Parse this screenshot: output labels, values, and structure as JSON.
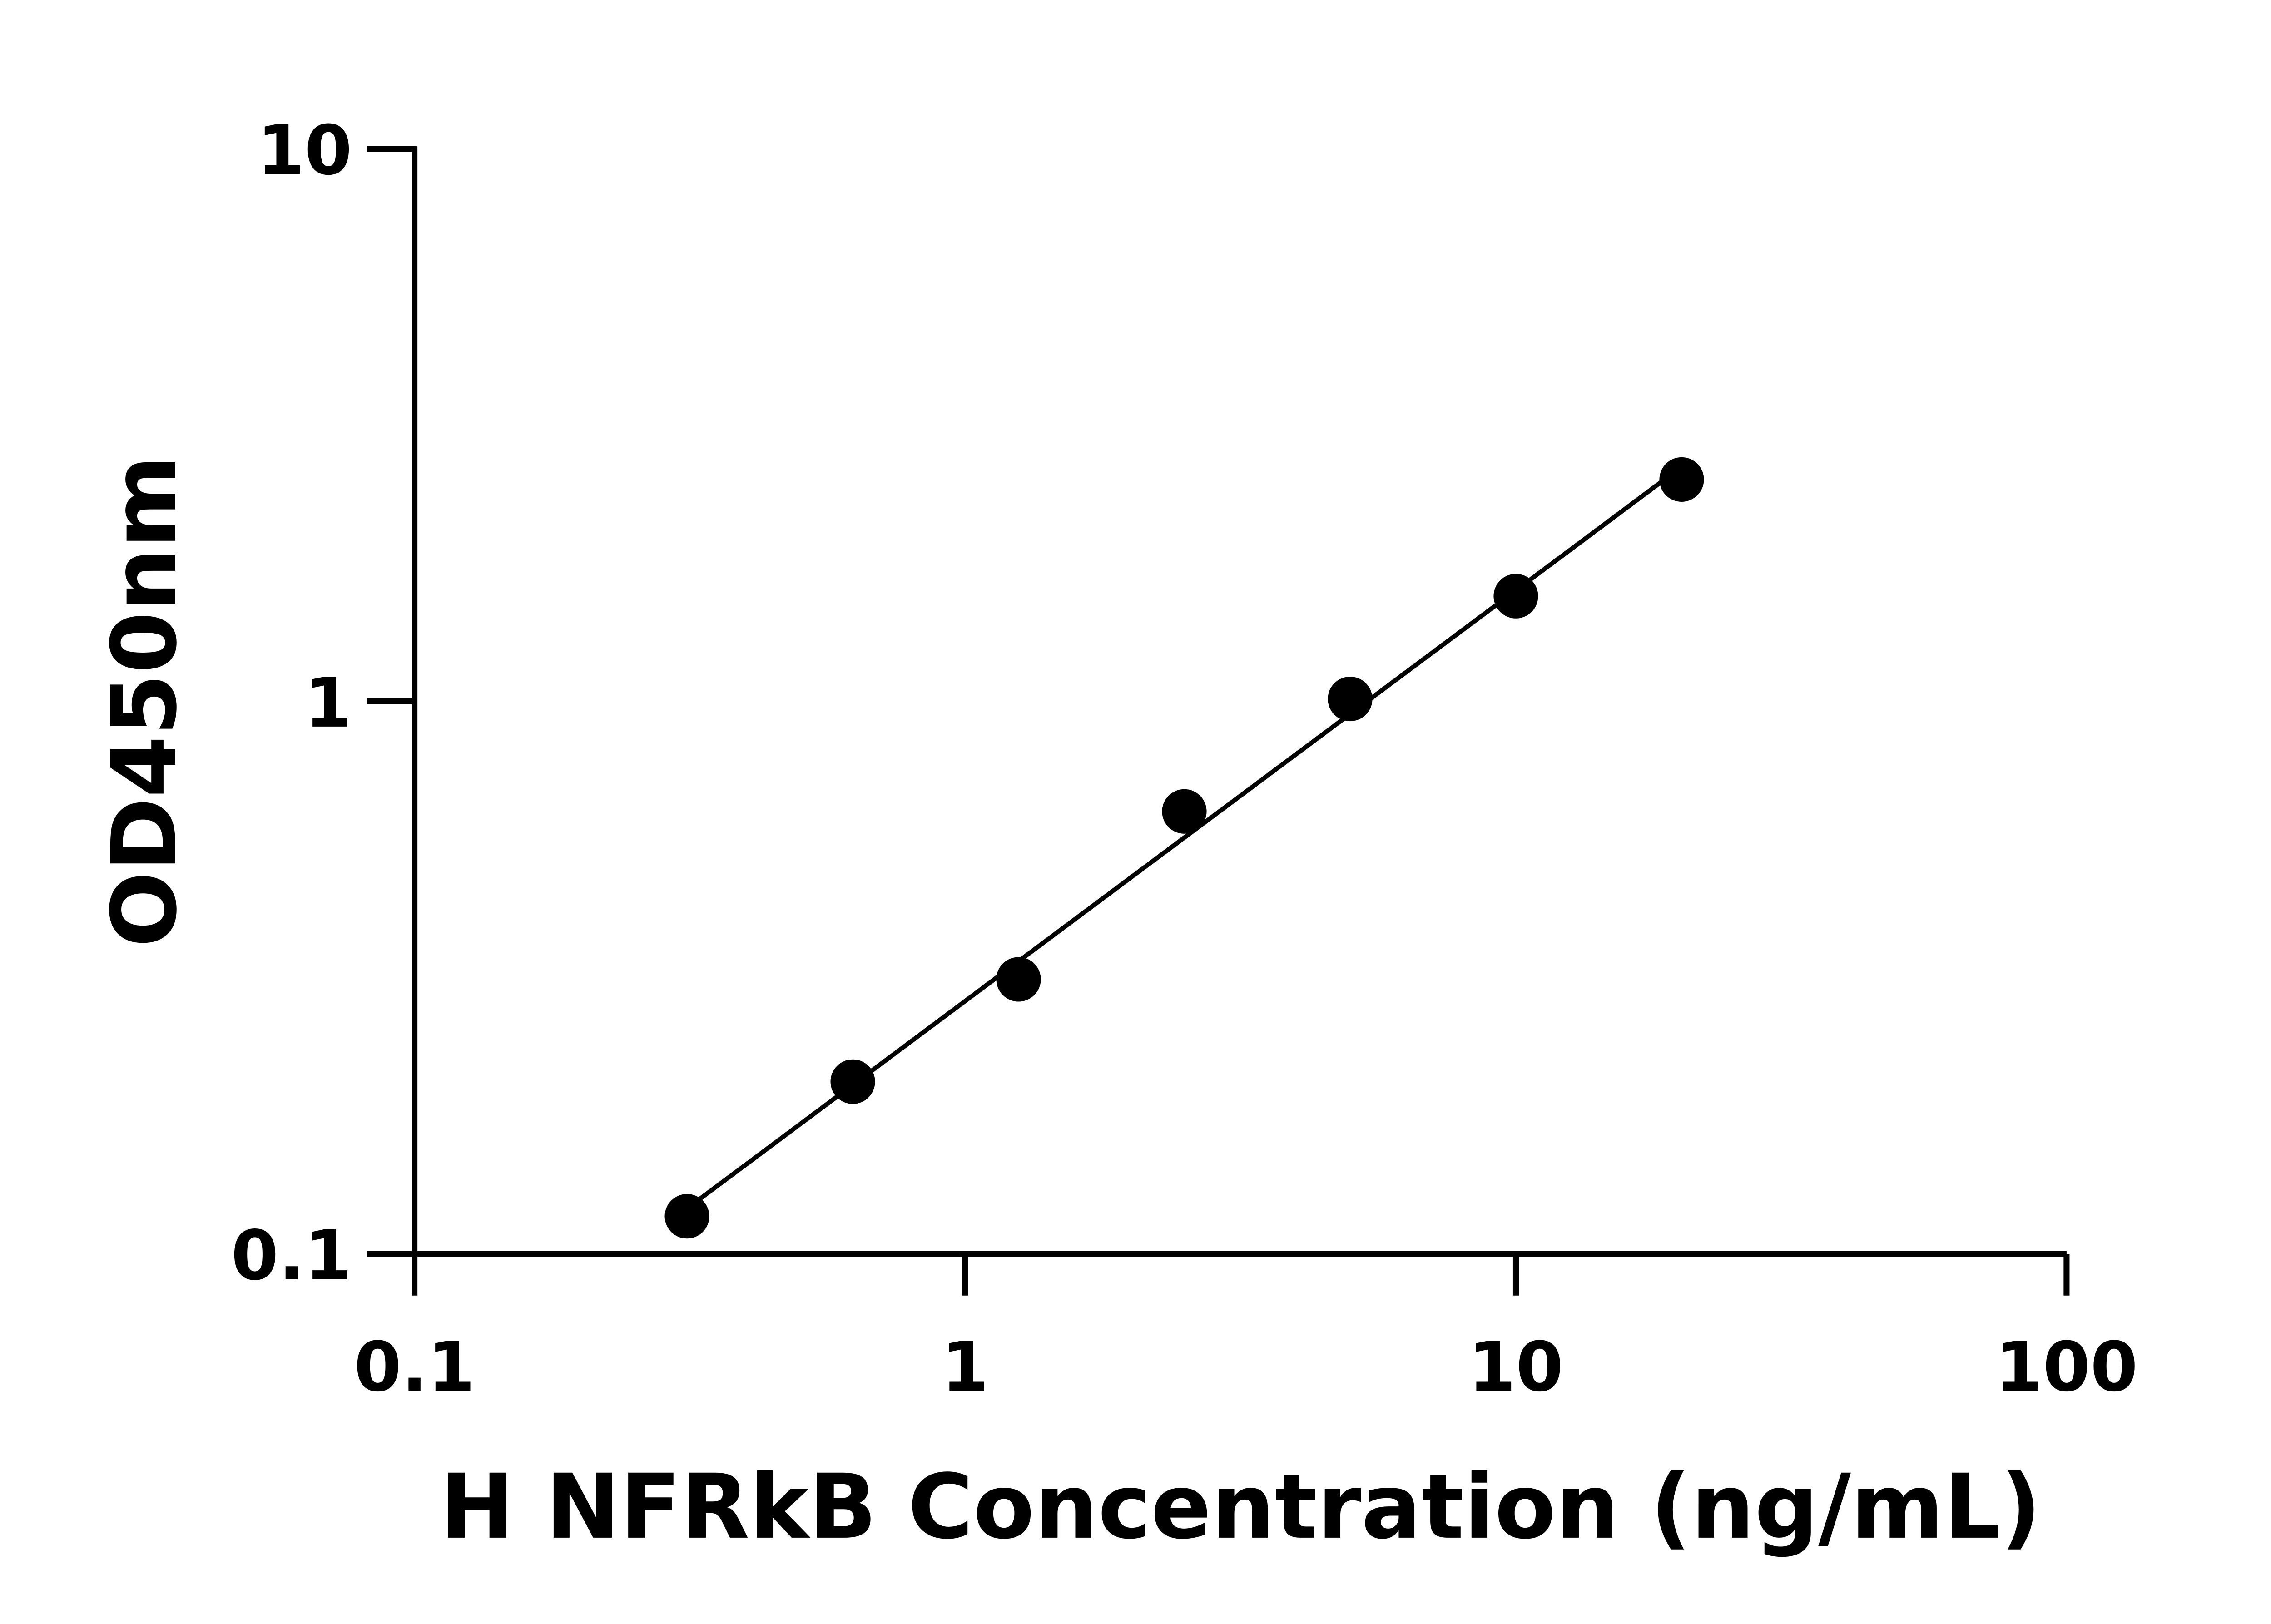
{
  "chart_data": {
    "type": "scatter",
    "title": "",
    "xlabel": "H NFRkB Concentration (ng/mL)",
    "ylabel": "OD450nm",
    "xscale": "log",
    "yscale": "log",
    "xlim": [
      0.1,
      100
    ],
    "ylim": [
      0.1,
      10
    ],
    "xticks": [
      "0.1",
      "1",
      "10",
      "100"
    ],
    "yticks": [
      "0.1",
      "1",
      "10"
    ],
    "grid": false,
    "legend": "none",
    "fit_line": true,
    "marker_color": "#000000",
    "series": [
      {
        "x": [
          0.3125,
          0.625,
          1.25,
          2.5,
          5,
          10,
          20
        ],
        "y": [
          0.117,
          0.205,
          0.314,
          0.632,
          1.01,
          1.55,
          2.52
        ]
      }
    ]
  }
}
